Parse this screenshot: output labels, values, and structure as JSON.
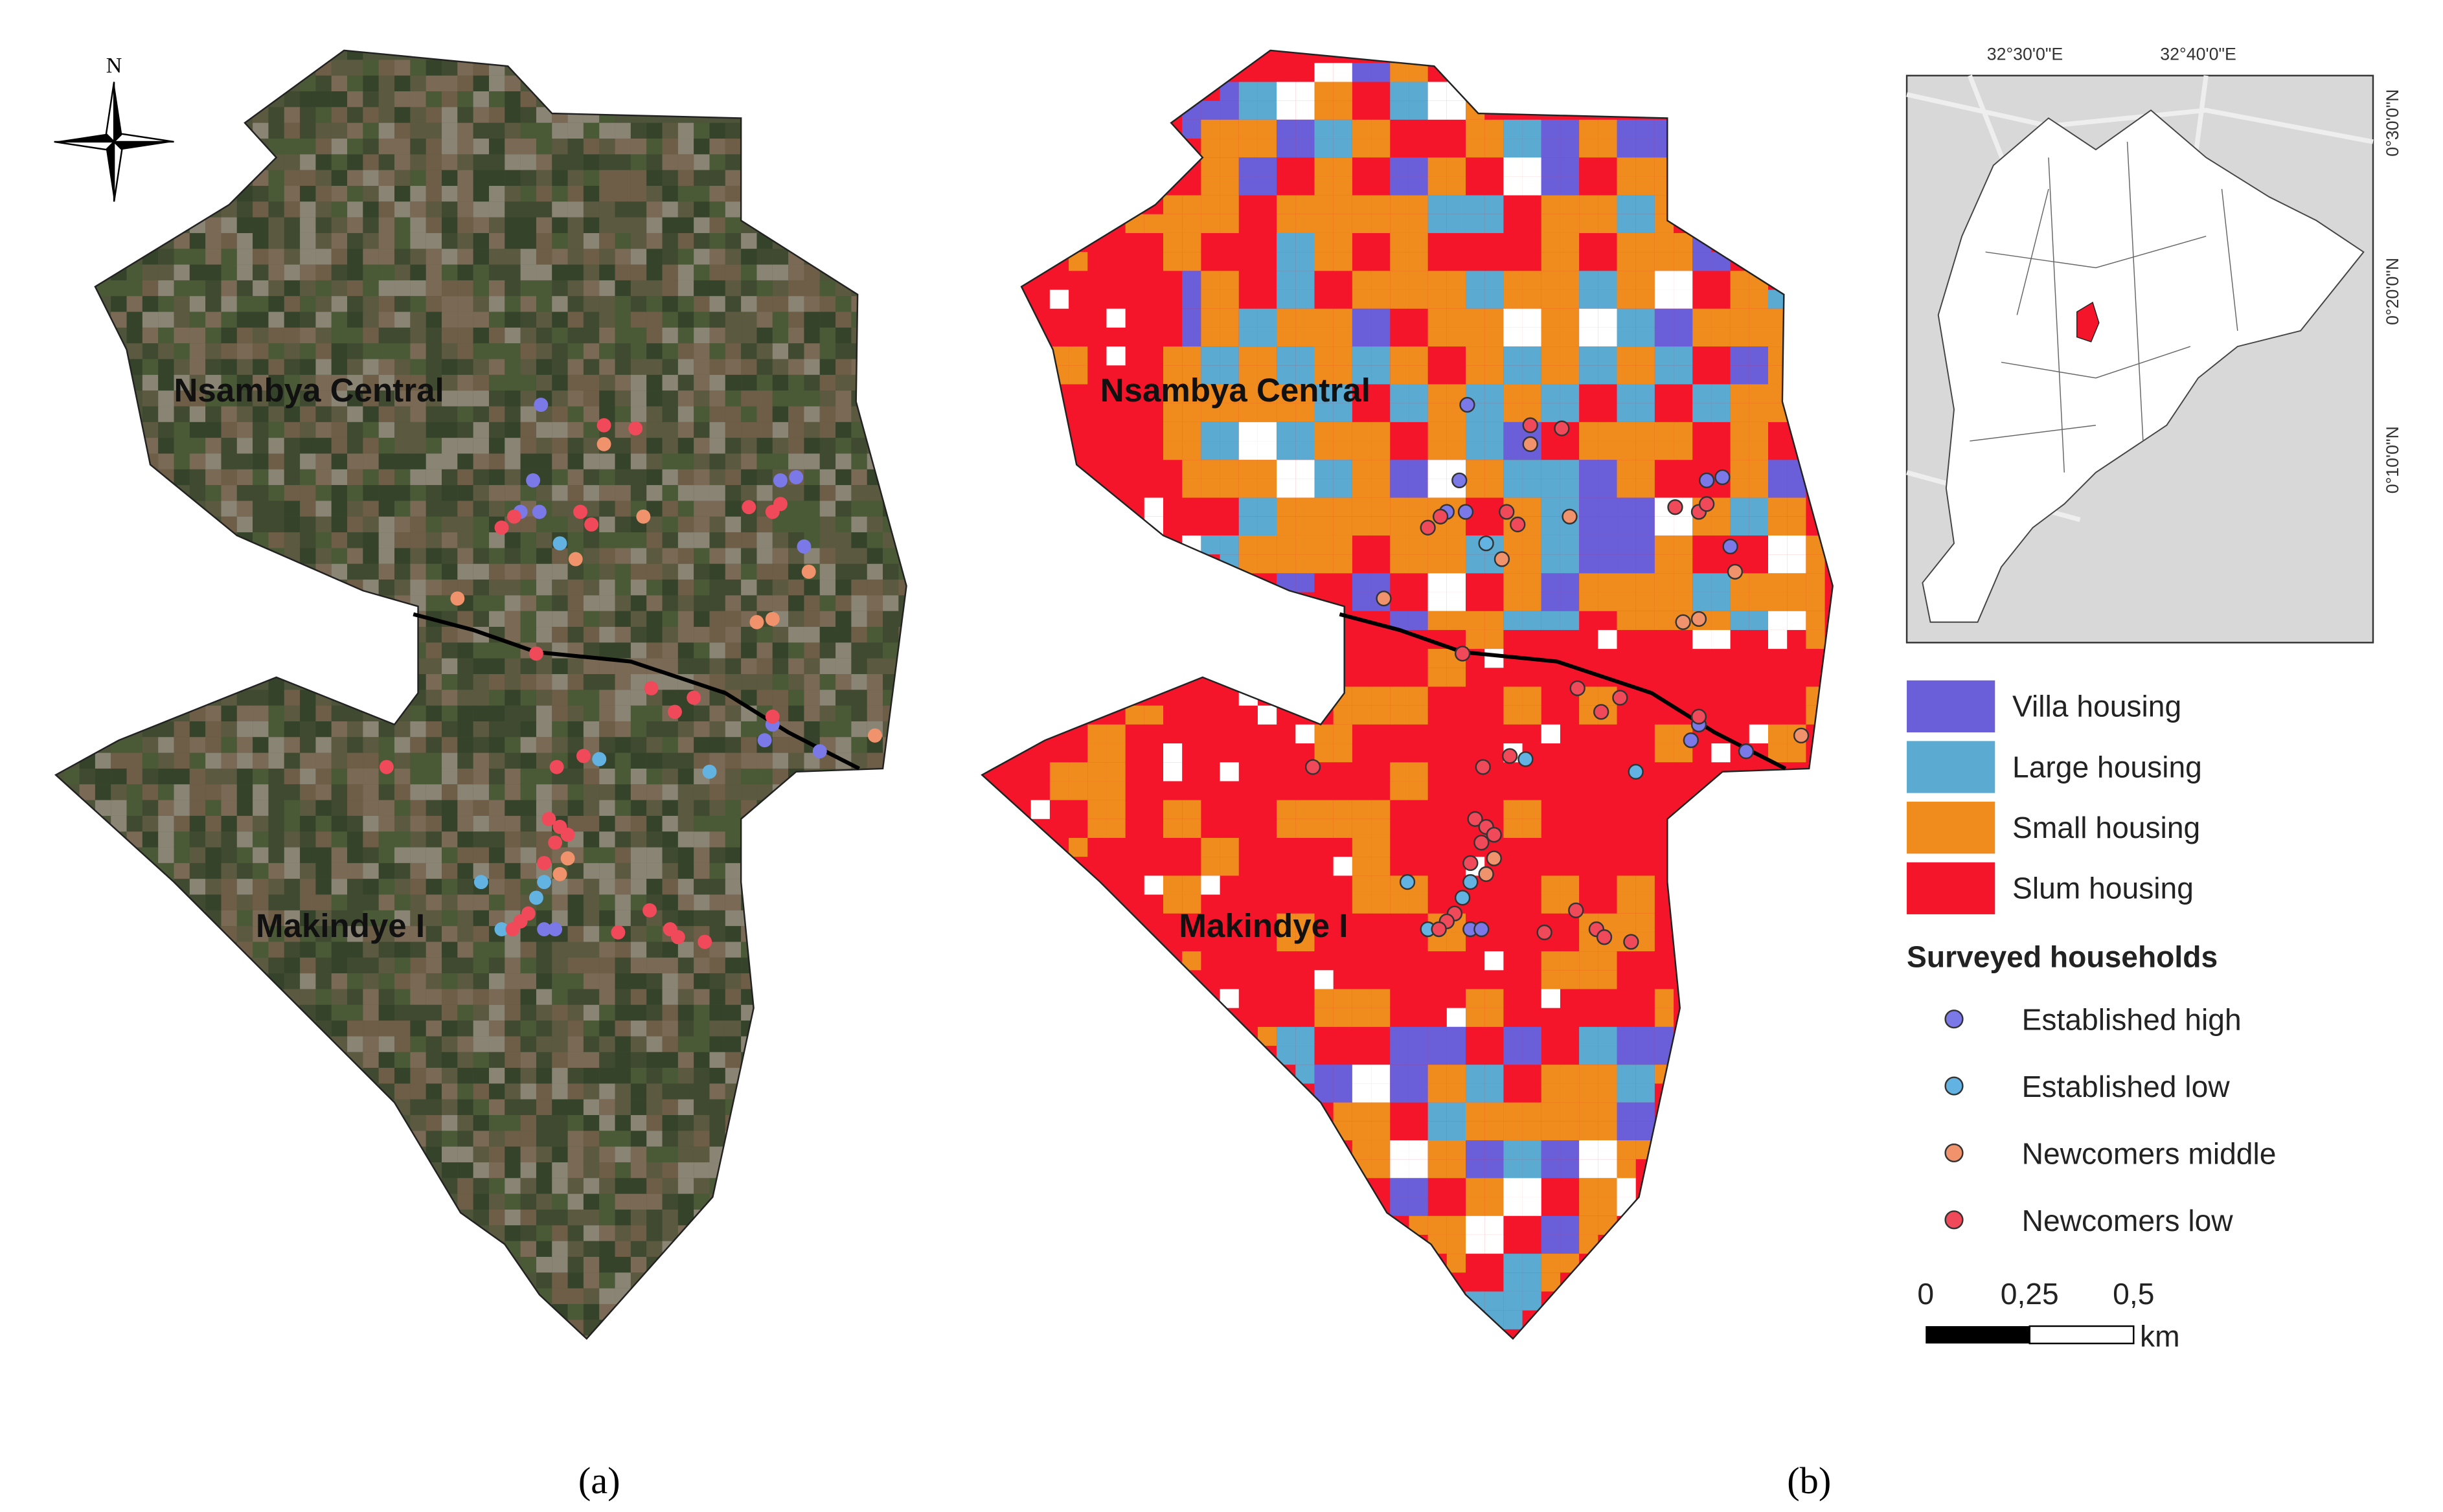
{
  "north_arrow": "N",
  "map_labels": [
    "Nsambya Central",
    "Makindye I"
  ],
  "panels": [
    {
      "label": "(a)"
    },
    {
      "label": "(b)"
    }
  ],
  "inset": {
    "x_labels": [
      "32°30'0\"E",
      "32°40'0\"E"
    ],
    "y_labels": [
      "0°30'0\"N",
      "0°20'0\"N",
      "0°10'0\"N"
    ]
  },
  "legend": {
    "housing": [
      {
        "label": "Villa housing",
        "color": "#6a5fd8"
      },
      {
        "label": "Large housing",
        "color": "#5aaad2"
      },
      {
        "label": "Small housing",
        "color": "#f08c1e"
      },
      {
        "label": "Slum housing",
        "color": "#f5152a"
      }
    ],
    "households_title": "Surveyed households",
    "households": [
      {
        "label": "Established high",
        "color": "#7b78e8"
      },
      {
        "label": "Established low",
        "color": "#62b2e2"
      },
      {
        "label": "Newcomers middle",
        "color": "#f0926c"
      },
      {
        "label": "Newcomers low",
        "color": "#f04a5a"
      }
    ]
  },
  "scale_bar": {
    "labels": [
      "0",
      "0,25",
      "0,5"
    ],
    "unit": "km"
  }
}
